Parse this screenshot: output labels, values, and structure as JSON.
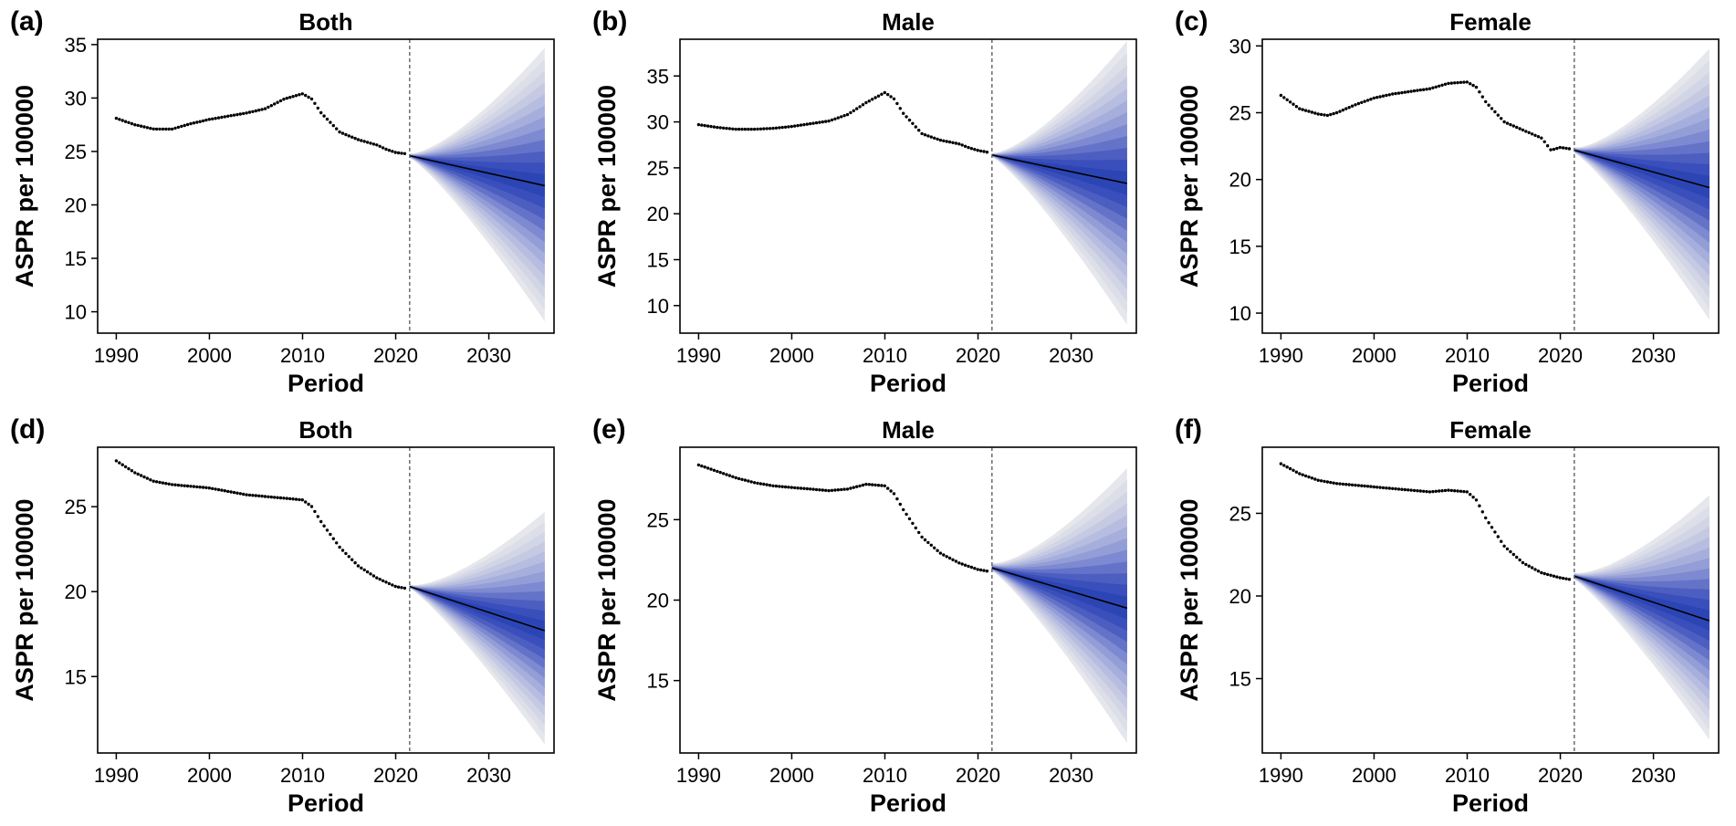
{
  "figure": {
    "panel_count": 6
  },
  "chart_data": [
    {
      "type": "line",
      "panel_label": "(a)",
      "title": "Both",
      "xlabel": "Period",
      "ylabel": "ASPR per 100000",
      "xlim": [
        1988,
        2037
      ],
      "ylim": [
        8,
        35.5
      ],
      "xticks": [
        1990,
        2000,
        2010,
        2020,
        2030
      ],
      "yticks": [
        10,
        15,
        20,
        25,
        30,
        35
      ],
      "projection_start": 2021.5,
      "observed": {
        "x": [
          1990,
          1992,
          1994,
          1996,
          1998,
          2000,
          2002,
          2004,
          2006,
          2008,
          2010,
          2011,
          2012,
          2014,
          2016,
          2018,
          2019,
          2020,
          2021
        ],
        "y": [
          28.1,
          27.5,
          27.1,
          27.1,
          27.6,
          28.0,
          28.3,
          28.6,
          29.0,
          29.9,
          30.4,
          29.9,
          28.6,
          26.8,
          26.1,
          25.6,
          25.2,
          24.9,
          24.8
        ]
      },
      "projection": {
        "x": [
          2021.5,
          2036
        ],
        "mean": [
          24.6,
          21.8
        ],
        "upper": [
          24.8,
          34.5
        ],
        "lower": [
          24.4,
          9.1
        ]
      }
    },
    {
      "type": "line",
      "panel_label": "(b)",
      "title": "Male",
      "xlabel": "Period",
      "ylabel": "ASPR per 100000",
      "xlim": [
        1988,
        2037
      ],
      "ylim": [
        7,
        39
      ],
      "xticks": [
        1990,
        2000,
        2010,
        2020,
        2030
      ],
      "yticks": [
        10,
        15,
        20,
        25,
        30,
        35
      ],
      "projection_start": 2021.5,
      "observed": {
        "x": [
          1990,
          1992,
          1994,
          1996,
          1998,
          2000,
          2002,
          2004,
          2006,
          2008,
          2010,
          2011,
          2012,
          2014,
          2016,
          2018,
          2019,
          2020,
          2021
        ],
        "y": [
          29.7,
          29.4,
          29.2,
          29.2,
          29.3,
          29.5,
          29.8,
          30.1,
          30.8,
          32.1,
          33.2,
          32.5,
          30.9,
          28.7,
          28.0,
          27.6,
          27.2,
          26.9,
          26.7
        ]
      },
      "projection": {
        "x": [
          2021.5,
          2036
        ],
        "mean": [
          26.4,
          23.3
        ],
        "upper": [
          26.6,
          38.6
        ],
        "lower": [
          26.2,
          7.9
        ]
      }
    },
    {
      "type": "line",
      "panel_label": "(c)",
      "title": "Female",
      "xlabel": "Period",
      "ylabel": "ASPR per 100000",
      "xlim": [
        1988,
        2037
      ],
      "ylim": [
        8.5,
        30.5
      ],
      "xticks": [
        1990,
        2000,
        2010,
        2020,
        2030
      ],
      "yticks": [
        10,
        15,
        20,
        25,
        30
      ],
      "projection_start": 2021.5,
      "observed": {
        "x": [
          1990,
          1992,
          1994,
          1995,
          1996,
          1998,
          2000,
          2002,
          2004,
          2006,
          2008,
          2010,
          2011,
          2012,
          2014,
          2016,
          2018,
          2019,
          2020,
          2021
        ],
        "y": [
          26.3,
          25.3,
          24.9,
          24.8,
          25.0,
          25.6,
          26.1,
          26.4,
          26.6,
          26.8,
          27.2,
          27.3,
          26.9,
          25.8,
          24.3,
          23.7,
          23.1,
          22.2,
          22.4,
          22.3
        ]
      },
      "projection": {
        "x": [
          2021.5,
          2036
        ],
        "mean": [
          22.2,
          19.4
        ],
        "upper": [
          22.4,
          29.6
        ],
        "lower": [
          22.0,
          9.5
        ]
      }
    },
    {
      "type": "line",
      "panel_label": "(d)",
      "title": "Both",
      "xlabel": "Period",
      "ylabel": "ASPR per 100000",
      "xlim": [
        1988,
        2037
      ],
      "ylim": [
        10.5,
        28.5
      ],
      "xticks": [
        1990,
        2000,
        2010,
        2020,
        2030
      ],
      "yticks": [
        15,
        20,
        25
      ],
      "projection_start": 2021.5,
      "observed": {
        "x": [
          1990,
          1992,
          1994,
          1996,
          1998,
          2000,
          2002,
          2004,
          2006,
          2008,
          2010,
          2011,
          2012,
          2014,
          2016,
          2018,
          2020,
          2021
        ],
        "y": [
          27.7,
          27.0,
          26.5,
          26.3,
          26.2,
          26.1,
          25.9,
          25.7,
          25.6,
          25.5,
          25.4,
          25.0,
          24.1,
          22.6,
          21.5,
          20.8,
          20.3,
          20.2
        ]
      },
      "projection": {
        "x": [
          2021.5,
          2036
        ],
        "mean": [
          20.3,
          17.7
        ],
        "upper": [
          20.4,
          24.6
        ],
        "lower": [
          20.2,
          11.0
        ]
      }
    },
    {
      "type": "line",
      "panel_label": "(e)",
      "title": "Male",
      "xlabel": "Period",
      "ylabel": "ASPR per 100000",
      "xlim": [
        1988,
        2037
      ],
      "ylim": [
        10.5,
        29.5
      ],
      "xticks": [
        1990,
        2000,
        2010,
        2020,
        2030
      ],
      "yticks": [
        15,
        20,
        25
      ],
      "projection_start": 2021.5,
      "observed": {
        "x": [
          1990,
          1992,
          1994,
          1996,
          1998,
          2000,
          2002,
          2004,
          2006,
          2008,
          2010,
          2011,
          2012,
          2014,
          2016,
          2018,
          2020,
          2021
        ],
        "y": [
          28.4,
          28.0,
          27.6,
          27.3,
          27.1,
          27.0,
          26.9,
          26.8,
          26.9,
          27.2,
          27.1,
          26.6,
          25.6,
          23.9,
          22.9,
          22.3,
          21.9,
          21.8
        ]
      },
      "projection": {
        "x": [
          2021.5,
          2036
        ],
        "mean": [
          22.0,
          19.5
        ],
        "upper": [
          22.3,
          27.9
        ],
        "lower": [
          21.8,
          11.1
        ]
      }
    },
    {
      "type": "line",
      "panel_label": "(f)",
      "title": "Female",
      "xlabel": "Period",
      "ylabel": "ASPR per 100000",
      "xlim": [
        1988,
        2037
      ],
      "ylim": [
        10.5,
        29
      ],
      "xticks": [
        1990,
        2000,
        2010,
        2020,
        2030
      ],
      "yticks": [
        15,
        20,
        25
      ],
      "projection_start": 2021.5,
      "observed": {
        "x": [
          1990,
          1992,
          1994,
          1996,
          1998,
          2000,
          2002,
          2004,
          2006,
          2008,
          2010,
          2011,
          2012,
          2014,
          2016,
          2018,
          2020,
          2021
        ],
        "y": [
          28.0,
          27.4,
          27.0,
          26.8,
          26.7,
          26.6,
          26.5,
          26.4,
          26.3,
          26.4,
          26.3,
          25.8,
          24.7,
          23.0,
          22.0,
          21.4,
          21.1,
          21.0
        ]
      },
      "projection": {
        "x": [
          2021.5,
          2036
        ],
        "mean": [
          21.2,
          18.5
        ],
        "upper": [
          21.4,
          25.9
        ],
        "lower": [
          21.0,
          11.3
        ]
      }
    }
  ]
}
